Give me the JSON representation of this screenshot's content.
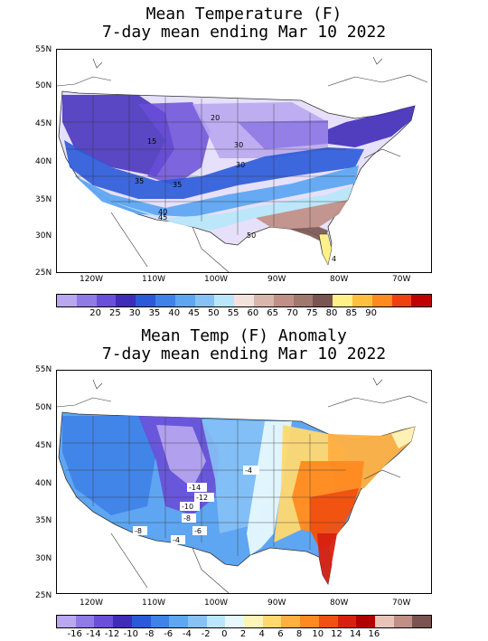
{
  "maps": [
    {
      "title_line1": "Mean Temperature (F)",
      "title_line2": "7-day mean ending Mar 10 2022",
      "lat_labels": [
        "55N",
        "50N",
        "45N",
        "40N",
        "35N",
        "30N",
        "25N"
      ],
      "lon_labels": [
        "120W",
        "110W",
        "100W",
        "90W",
        "80W",
        "70W"
      ],
      "colorbar_colors": [
        "#b9a8f0",
        "#8f7ae6",
        "#6a4fd8",
        "#3f2cb8",
        "#2a5ad8",
        "#3f82e8",
        "#5ea6f2",
        "#86c2f6",
        "#b9e6fa",
        "#f2e2dc",
        "#d8b6ae",
        "#c09088",
        "#a07870",
        "#7a5450",
        "#fff08a",
        "#ffc040",
        "#ff8a20",
        "#f04010",
        "#c00000"
      ],
      "colorbar_labels": [
        "20",
        "25",
        "30",
        "35",
        "40",
        "45",
        "50",
        "55",
        "60",
        "65",
        "70",
        "75",
        "80",
        "85",
        "90"
      ],
      "contour_labels": [
        "20",
        "15",
        "30",
        "35",
        "30",
        "35",
        "40",
        "45",
        "50",
        "60",
        "4"
      ]
    },
    {
      "title_line1": "Mean Temp (F) Anomaly",
      "title_line2": "7-day mean ending Mar 10 2022",
      "lat_labels": [
        "55N",
        "50N",
        "45N",
        "40N",
        "35N",
        "30N",
        "25N"
      ],
      "lon_labels": [
        "120W",
        "110W",
        "100W",
        "90W",
        "80W",
        "70W"
      ],
      "colorbar_colors": [
        "#b9a8f0",
        "#8f7ae6",
        "#6a4fd8",
        "#3f2cb8",
        "#2a5ad8",
        "#3f82e8",
        "#5ea6f2",
        "#86c2f6",
        "#b9e6fa",
        "#e6f8fc",
        "#fff4b8",
        "#ffd870",
        "#ffb040",
        "#ff8a20",
        "#f05010",
        "#d82010",
        "#b00000",
        "#e8c4b8",
        "#c09088",
        "#7a5450"
      ],
      "colorbar_labels": [
        "-16",
        "-14",
        "-12",
        "-10",
        "-8",
        "-6",
        "-4",
        "-2",
        "0",
        "2",
        "4",
        "6",
        "8",
        "10",
        "12",
        "14",
        "16"
      ],
      "contour_labels": [
        "-4",
        "-14",
        "-12",
        "-10",
        "-8",
        "-6",
        "-8",
        "-4"
      ]
    }
  ]
}
